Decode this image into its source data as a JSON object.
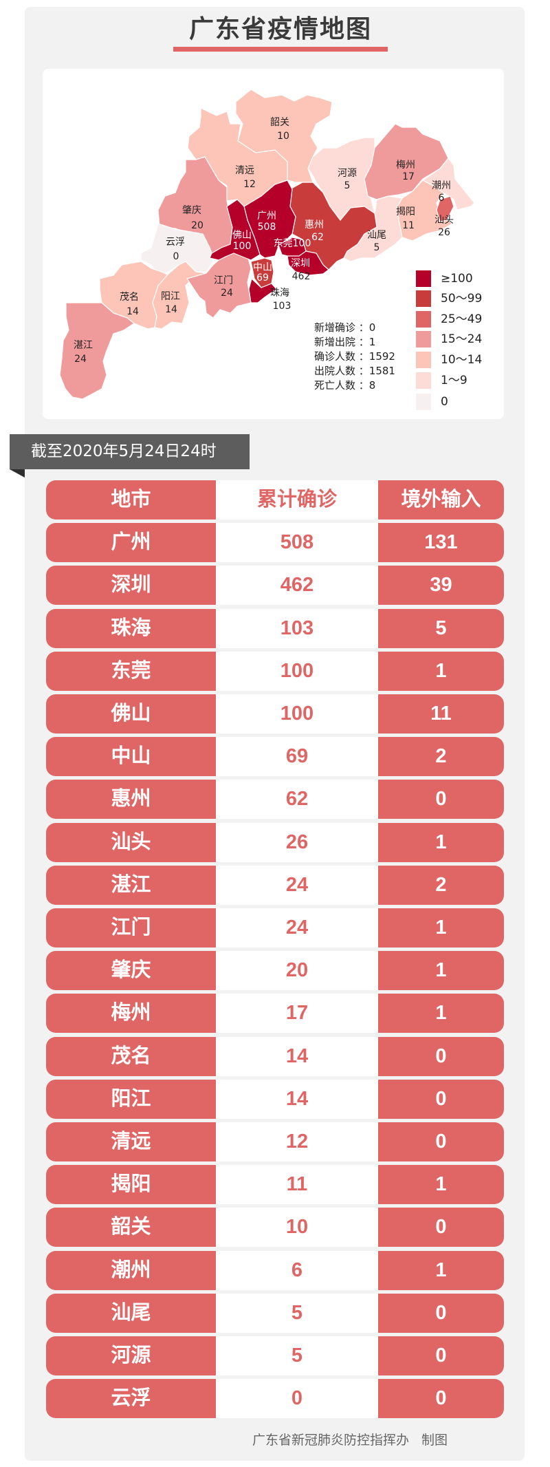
{
  "title": "广东省疫情地图",
  "colors": {
    "accent": "#e06666",
    "panel": "#f2f2f2",
    "banner": "#5d5d5d"
  },
  "legend": [
    {
      "label": "≥100",
      "color": "#b5002a"
    },
    {
      "label": "50～99",
      "color": "#c83c3c"
    },
    {
      "label": "25～49",
      "color": "#e06666"
    },
    {
      "label": "15～24",
      "color": "#f09b9b"
    },
    {
      "label": "10～14",
      "color": "#fcc5b8"
    },
    {
      "label": "1～9",
      "color": "#fddcd7"
    },
    {
      "label": "0",
      "color": "#f7f0f0"
    }
  ],
  "stats": [
    {
      "label": "新增确诊",
      "value": "0"
    },
    {
      "label": "新增出院",
      "value": "1"
    },
    {
      "label": "确诊人数",
      "value": "1592"
    },
    {
      "label": "出院人数",
      "value": "1581"
    },
    {
      "label": "死亡人数",
      "value": "8"
    }
  ],
  "map_regions": [
    {
      "name": "韶关",
      "value": "10"
    },
    {
      "name": "清远",
      "value": "12"
    },
    {
      "name": "肇庆",
      "value": "20"
    },
    {
      "name": "云浮",
      "value": "0"
    },
    {
      "name": "茂名",
      "value": "14"
    },
    {
      "name": "阳江",
      "value": "14"
    },
    {
      "name": "江门",
      "value": "24"
    },
    {
      "name": "湛江",
      "value": "24"
    },
    {
      "name": "河源",
      "value": "5"
    },
    {
      "name": "梅州",
      "value": "17"
    },
    {
      "name": "潮州",
      "value": "6"
    },
    {
      "name": "揭阳",
      "value": "11"
    },
    {
      "name": "汕尾",
      "value": "5"
    },
    {
      "name": "汕头",
      "value": "26"
    },
    {
      "name": "惠州",
      "value": "62"
    },
    {
      "name": "广州",
      "value": "508"
    },
    {
      "name": "佛山",
      "value": "100"
    },
    {
      "name": "中山",
      "value": "69"
    },
    {
      "name": "珠海",
      "value": "103"
    },
    {
      "name": "深圳",
      "value": "462"
    },
    {
      "name": "东莞",
      "value": "100"
    }
  ],
  "as_of": "截至2020年5月24日24时",
  "table": {
    "headers": [
      "地市",
      "累计确诊",
      "境外输入"
    ],
    "rows": [
      [
        "广州",
        "508",
        "131"
      ],
      [
        "深圳",
        "462",
        "39"
      ],
      [
        "珠海",
        "103",
        "5"
      ],
      [
        "东莞",
        "100",
        "1"
      ],
      [
        "佛山",
        "100",
        "11"
      ],
      [
        "中山",
        "69",
        "2"
      ],
      [
        "惠州",
        "62",
        "0"
      ],
      [
        "汕头",
        "26",
        "1"
      ],
      [
        "湛江",
        "24",
        "2"
      ],
      [
        "江门",
        "24",
        "1"
      ],
      [
        "肇庆",
        "20",
        "1"
      ],
      [
        "梅州",
        "17",
        "1"
      ],
      [
        "茂名",
        "14",
        "0"
      ],
      [
        "阳江",
        "14",
        "0"
      ],
      [
        "清远",
        "12",
        "0"
      ],
      [
        "揭阳",
        "11",
        "1"
      ],
      [
        "韶关",
        "10",
        "0"
      ],
      [
        "潮州",
        "6",
        "1"
      ],
      [
        "汕尾",
        "5",
        "0"
      ],
      [
        "河源",
        "5",
        "0"
      ],
      [
        "云浮",
        "0",
        "0"
      ]
    ]
  },
  "footer": {
    "org": "广东省新冠肺炎防控指挥办",
    "suffix": "制图"
  }
}
